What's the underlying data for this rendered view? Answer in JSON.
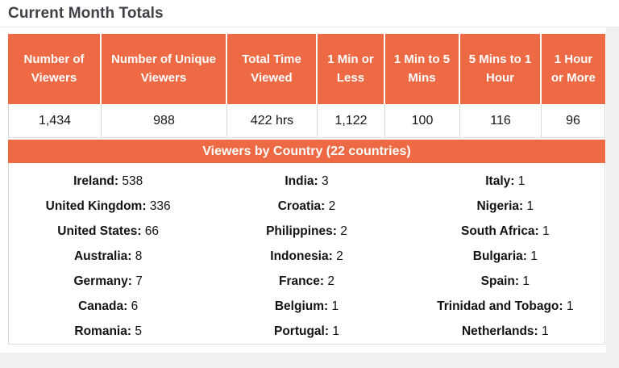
{
  "title": "Current Month Totals",
  "colors": {
    "accent_orange": "#ed6a45",
    "title_gray": "#3e4247",
    "cell_border_gray": "#d9d9d9",
    "page_background_gray": "#eef0f1"
  },
  "summary": {
    "headers": [
      "Number of Viewers",
      "Number of Unique Viewers",
      "Total Time Viewed",
      "1 Min or Less",
      "1 Min to 5 Mins",
      "5 Mins to 1 Hour",
      "1 Hour or More"
    ],
    "values": [
      "1,434",
      "988",
      "422 hrs",
      "1,122",
      "100",
      "116",
      "96"
    ]
  },
  "countries": {
    "banner": "Viewers by Country (22 countries)",
    "col1": [
      {
        "n": "Ireland:",
        "v": "538"
      },
      {
        "n": "United Kingdom:",
        "v": "336"
      },
      {
        "n": "United States:",
        "v": "66"
      },
      {
        "n": "Australia:",
        "v": "8"
      },
      {
        "n": "Germany:",
        "v": "7"
      },
      {
        "n": "Canada:",
        "v": "6"
      },
      {
        "n": "Romania:",
        "v": "5"
      }
    ],
    "col2": [
      {
        "n": "India:",
        "v": "3"
      },
      {
        "n": "Croatia:",
        "v": "2"
      },
      {
        "n": "Philippines:",
        "v": "2"
      },
      {
        "n": "Indonesia:",
        "v": "2"
      },
      {
        "n": "France:",
        "v": "2"
      },
      {
        "n": "Belgium:",
        "v": "1"
      },
      {
        "n": "Portugal:",
        "v": "1"
      }
    ],
    "col3": [
      {
        "n": "Italy:",
        "v": "1"
      },
      {
        "n": "Nigeria:",
        "v": "1"
      },
      {
        "n": "South Africa:",
        "v": "1"
      },
      {
        "n": "Bulgaria:",
        "v": "1"
      },
      {
        "n": "Spain:",
        "v": "1"
      },
      {
        "n": "Trinidad and Tobago:",
        "v": "1"
      },
      {
        "n": "Netherlands:",
        "v": "1"
      }
    ]
  }
}
